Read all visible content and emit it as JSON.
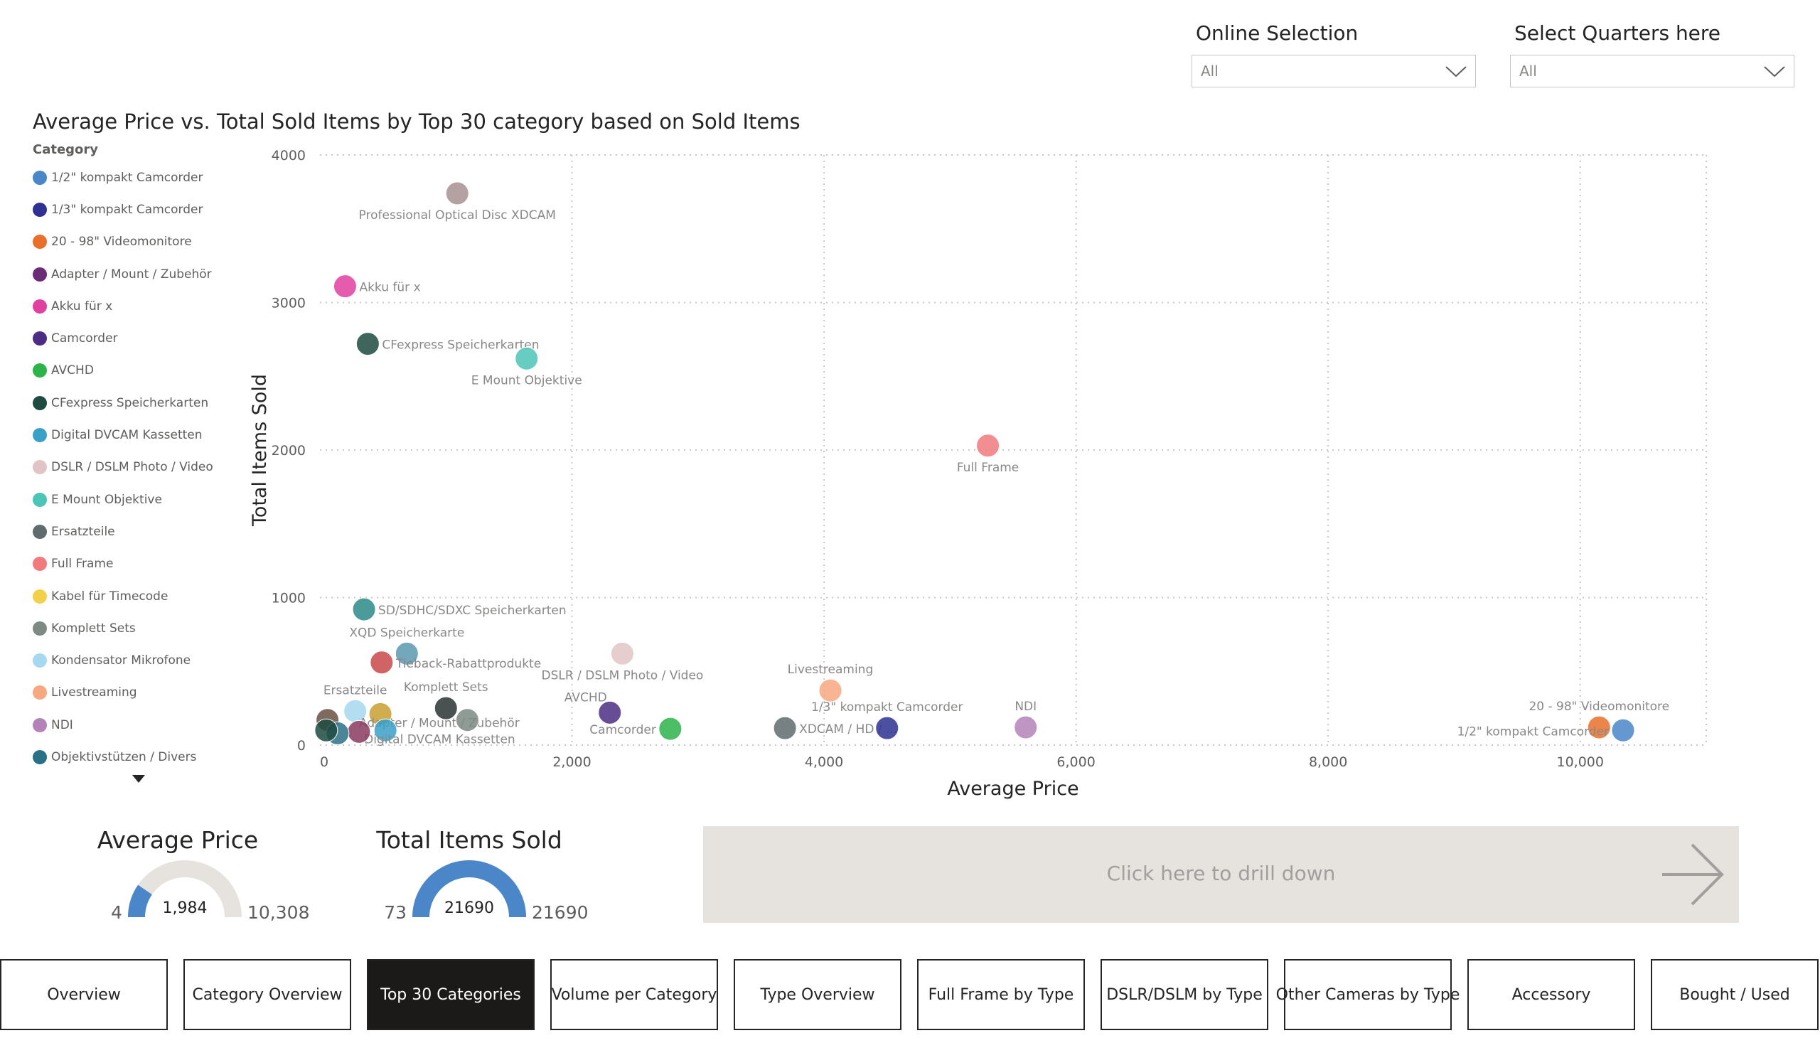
{
  "slicers": [
    {
      "title": "Online Selection",
      "value": "All"
    },
    {
      "title": "Select Quarters here",
      "value": "All"
    }
  ],
  "chart_title": "Average Price vs. Total Sold Items by Top 30 category based on Sold Items",
  "legend": {
    "title": "Category",
    "items": [
      {
        "name": "1/2\" kompakt Camcorder",
        "color": "#4a86c8"
      },
      {
        "name": "1/3\" kompakt Camcorder",
        "color": "#2e3192"
      },
      {
        "name": "20 - 98\" Videomonitore",
        "color": "#e8702a"
      },
      {
        "name": "Adapter / Mount / Zubehör",
        "color": "#6b2c77"
      },
      {
        "name": "Akku für x",
        "color": "#e040a0"
      },
      {
        "name": "Camcorder",
        "color": "#4b2e83"
      },
      {
        "name": "AVCHD",
        "color": "#2db34a"
      },
      {
        "name": "CFexpress Speicherkarten",
        "color": "#1e4a40"
      },
      {
        "name": "Digital DVCAM Kassetten",
        "color": "#3aa0c8"
      },
      {
        "name": "DSLR / DSLM Photo / Video",
        "color": "#e2c4c6"
      },
      {
        "name": "E Mount Objektive",
        "color": "#4cc4b8"
      },
      {
        "name": "Ersatzteile",
        "color": "#5f6b6d"
      },
      {
        "name": "Full Frame",
        "color": "#f07a7e"
      },
      {
        "name": "Kabel für Timecode",
        "color": "#f2d04a"
      },
      {
        "name": "Komplett Sets",
        "color": "#7d8a84"
      },
      {
        "name": "Kondensator Mikrofone",
        "color": "#a6d8f0"
      },
      {
        "name": "Livestreaming",
        "color": "#f8a880"
      },
      {
        "name": "NDI",
        "color": "#b482b8"
      },
      {
        "name": "Objektivstützen / Divers",
        "color": "#2a7088"
      }
    ]
  },
  "chart_data": {
    "type": "scatter",
    "title": "Average Price vs. Total Sold Items by Top 30 category based on Sold Items",
    "xlabel": "Average Price",
    "ylabel": "Total Items Sold",
    "xlim": [
      0,
      11000
    ],
    "ylim": [
      0,
      4000
    ],
    "xticks": [
      0,
      2000,
      4000,
      6000,
      8000,
      10000
    ],
    "xtick_labels": [
      "0",
      "2,000",
      "4,000",
      "6,000",
      "8,000",
      "10,000"
    ],
    "yticks": [
      0,
      1000,
      2000,
      3000,
      4000
    ],
    "ytick_labels": [
      "0",
      "1000",
      "2000",
      "3000",
      "4000"
    ],
    "grid": true,
    "points": [
      {
        "label": "Professional Optical Disc XDCAM",
        "x": 1090,
        "y": 3740,
        "color": "#a89090",
        "lp": "below"
      },
      {
        "label": "Akku für x",
        "x": 200,
        "y": 3110,
        "color": "#e040a0",
        "lp": "right"
      },
      {
        "label": "CFexpress Speicherkarten",
        "x": 380,
        "y": 2720,
        "color": "#1e4a40",
        "lp": "right"
      },
      {
        "label": "E Mount Objektive",
        "x": 1640,
        "y": 2620,
        "color": "#4cc4b8",
        "lp": "below"
      },
      {
        "label": "Full Frame",
        "x": 5300,
        "y": 2030,
        "color": "#f07a7e",
        "lp": "below"
      },
      {
        "label": "SD/SDHC/SDXC Speicherkarten",
        "x": 350,
        "y": 920,
        "color": "#2a8a88",
        "lp": "right"
      },
      {
        "label": "XQD Speicherkarte",
        "x": 690,
        "y": 620,
        "color": "#5a98b0",
        "lp": "above"
      },
      {
        "label": "Tieback-Rabattprodukte",
        "x": 490,
        "y": 560,
        "color": "#c84848",
        "lp": "right"
      },
      {
        "label": "DSLR / DSLM Photo / Video",
        "x": 2400,
        "y": 620,
        "color": "#e2c4c6",
        "lp": "below"
      },
      {
        "label": "Livestreaming",
        "x": 4050,
        "y": 370,
        "color": "#f8a880",
        "lp": "above"
      },
      {
        "label": "Komplett Sets",
        "x": 1000,
        "y": 250,
        "color": "#2a3232",
        "lp": "above"
      },
      {
        "label": "Ersatzteile",
        "x": 280,
        "y": 230,
        "color": "#a6d8f0",
        "lp": "above"
      },
      {
        "label": "Adapter / Mount / Zubehör",
        "x": 480,
        "y": 210,
        "color": "#c8a030",
        "lp": "belowright"
      },
      {
        "label": "Digital DVCAM Kassetten",
        "x": 520,
        "y": 100,
        "color": "#3aa0c8",
        "lp": "belowright"
      },
      {
        "label": "",
        "x": 60,
        "y": 170,
        "color": "#6a5044",
        "lp": "none"
      },
      {
        "label": "",
        "x": 1170,
        "y": 170,
        "color": "#7d8a84",
        "lp": "none"
      },
      {
        "label": "",
        "x": 310,
        "y": 90,
        "color": "#8a3a60",
        "lp": "none"
      },
      {
        "label": "",
        "x": 140,
        "y": 80,
        "color": "#2a7088",
        "lp": "none"
      },
      {
        "label": "",
        "x": 50,
        "y": 100,
        "color": "#1e4a40",
        "lp": "none"
      },
      {
        "label": "AVCHD",
        "x": 2300,
        "y": 220,
        "color": "#4b2e83",
        "lp": "aboveleft"
      },
      {
        "label": "Camcorder",
        "x": 2780,
        "y": 110,
        "color": "#2db34a",
        "lp": "left"
      },
      {
        "label": "XDCAM / HD / ...",
        "x": 3690,
        "y": 115,
        "color": "#5f6b6d",
        "lp": "right"
      },
      {
        "label": "1/3\" kompakt Camcorder",
        "x": 4500,
        "y": 115,
        "color": "#2e3192",
        "lp": "above"
      },
      {
        "label": "NDI",
        "x": 5600,
        "y": 120,
        "color": "#b482b8",
        "lp": "above"
      },
      {
        "label": "20 - 98\" Videomonitore",
        "x": 10150,
        "y": 120,
        "color": "#e8702a",
        "lp": "above"
      },
      {
        "label": "1/2\" kompakt Camcorder",
        "x": 10340,
        "y": 100,
        "color": "#4a86c8",
        "lp": "left"
      }
    ]
  },
  "kpis": [
    {
      "title": "Average Price",
      "min": "4",
      "max": "10,308",
      "value": "1,984",
      "fraction": 0.192
    },
    {
      "title": "Total Items Sold",
      "min": "73",
      "max": "21690",
      "value": "21690",
      "fraction": 1.0
    }
  ],
  "drill": {
    "label": "Click here to drill down"
  },
  "nav": [
    {
      "label": "Overview",
      "active": false
    },
    {
      "label": "Category Overview",
      "active": false
    },
    {
      "label": "Top 30 Categories",
      "active": true
    },
    {
      "label": "Volume per Category",
      "active": false
    },
    {
      "label": "Type Overview",
      "active": false
    },
    {
      "label": "Full Frame by Type",
      "active": false
    },
    {
      "label": "DSLR/DSLM by Type",
      "active": false
    },
    {
      "label": "Other Cameras by Type",
      "active": false
    },
    {
      "label": "Accessory",
      "active": false
    },
    {
      "label": "Bought / Used",
      "active": false
    }
  ],
  "colors": {
    "accent": "#4a86c8",
    "gauge_track": "#e6e2de",
    "nav_active": "#1b1a19"
  }
}
